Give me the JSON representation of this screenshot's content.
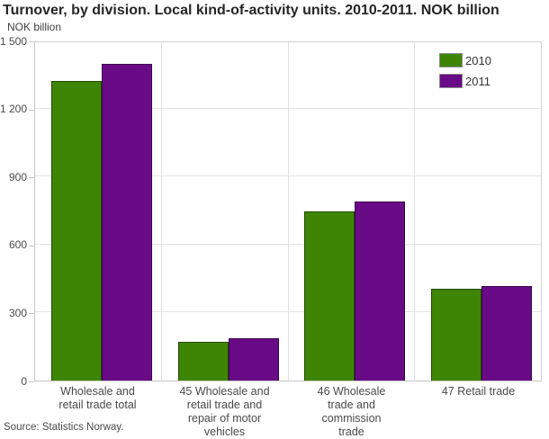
{
  "header": {
    "title": "Turnover, by division. Local kind-of-activity units. 2010-2011. NOK billion",
    "unit_label": "NOK billion"
  },
  "footer": {
    "source": "Source: Statistics Norway."
  },
  "colors": {
    "series_2010": "#3e8505",
    "series_2011": "#690a87",
    "gridline": "#e4e4e4",
    "frame": "#d2d2d2",
    "text": "#4a4a4a"
  },
  "chart_data": {
    "type": "bar",
    "title": "Turnover, by division. Local kind-of-activity units. 2010-2011. NOK billion",
    "xlabel": "",
    "ylabel": "NOK billion",
    "ylim": [
      0,
      1500
    ],
    "grid": true,
    "legend_position": "top-right",
    "yticks": [
      {
        "value": 1500,
        "label": "1 500"
      },
      {
        "value": 1200,
        "label": "1 200"
      },
      {
        "value": 900,
        "label": "900"
      },
      {
        "value": 600,
        "label": "600"
      },
      {
        "value": 300,
        "label": "300"
      },
      {
        "value": 0,
        "label": "0"
      }
    ],
    "categories": [
      "Wholesale and\nretail trade total",
      "45 Wholesale and\nretail trade and\nrepair of motor\nvehicles",
      "46 Wholesale\ntrade and\ncommission\ntrade",
      "47 Retail trade"
    ],
    "series": [
      {
        "name": "2010",
        "color": "#3e8505",
        "values": [
          1320,
          170,
          745,
          405
        ]
      },
      {
        "name": "2011",
        "color": "#690a87",
        "values": [
          1395,
          185,
          790,
          415
        ]
      }
    ]
  }
}
